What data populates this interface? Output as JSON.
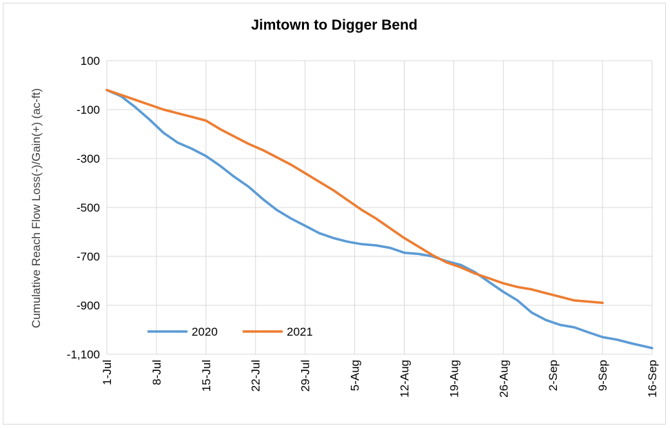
{
  "chart_data": {
    "type": "line",
    "title": "Jimtown to Digger Bend",
    "ylabel": "Cumulative Reach Flow Loss(-)/Gain(+) (ac-ft)",
    "xlabel": "",
    "x_ticks": [
      "1-Jul",
      "8-Jul",
      "15-Jul",
      "22-Jul",
      "29-Jul",
      "5-Aug",
      "12-Aug",
      "19-Aug",
      "26-Aug",
      "2-Sep",
      "9-Sep",
      "16-Sep"
    ],
    "y_ticks": [
      "100",
      "-100",
      "-300",
      "-500",
      "-700",
      "-900",
      "-1,100"
    ],
    "ylim": [
      -1100,
      100
    ],
    "xlim_days": [
      0,
      77
    ],
    "grid": true,
    "legend_position": "bottom-left",
    "series": [
      {
        "name": "2020",
        "color": "#5b9bd5",
        "points": [
          [
            0,
            -20
          ],
          [
            2,
            -45
          ],
          [
            4,
            -90
          ],
          [
            6,
            -140
          ],
          [
            8,
            -195
          ],
          [
            10,
            -235
          ],
          [
            12,
            -260
          ],
          [
            14,
            -290
          ],
          [
            16,
            -330
          ],
          [
            18,
            -375
          ],
          [
            20,
            -415
          ],
          [
            22,
            -465
          ],
          [
            24,
            -510
          ],
          [
            26,
            -545
          ],
          [
            28,
            -575
          ],
          [
            30,
            -605
          ],
          [
            32,
            -625
          ],
          [
            34,
            -640
          ],
          [
            36,
            -650
          ],
          [
            38,
            -655
          ],
          [
            40,
            -665
          ],
          [
            42,
            -685
          ],
          [
            44,
            -690
          ],
          [
            46,
            -700
          ],
          [
            48,
            -720
          ],
          [
            50,
            -735
          ],
          [
            52,
            -765
          ],
          [
            54,
            -805
          ],
          [
            56,
            -845
          ],
          [
            58,
            -880
          ],
          [
            60,
            -930
          ],
          [
            62,
            -960
          ],
          [
            64,
            -980
          ],
          [
            66,
            -990
          ],
          [
            68,
            -1010
          ],
          [
            70,
            -1030
          ],
          [
            72,
            -1040
          ],
          [
            74,
            -1055
          ],
          [
            77,
            -1075
          ]
        ]
      },
      {
        "name": "2021",
        "color": "#ed7d31",
        "points": [
          [
            0,
            -20
          ],
          [
            2,
            -40
          ],
          [
            4,
            -60
          ],
          [
            6,
            -80
          ],
          [
            8,
            -100
          ],
          [
            10,
            -115
          ],
          [
            12,
            -130
          ],
          [
            14,
            -145
          ],
          [
            16,
            -180
          ],
          [
            18,
            -210
          ],
          [
            20,
            -240
          ],
          [
            22,
            -265
          ],
          [
            24,
            -295
          ],
          [
            26,
            -325
          ],
          [
            28,
            -360
          ],
          [
            30,
            -395
          ],
          [
            32,
            -430
          ],
          [
            34,
            -470
          ],
          [
            36,
            -510
          ],
          [
            38,
            -545
          ],
          [
            40,
            -585
          ],
          [
            42,
            -625
          ],
          [
            44,
            -660
          ],
          [
            46,
            -695
          ],
          [
            48,
            -725
          ],
          [
            50,
            -745
          ],
          [
            52,
            -770
          ],
          [
            54,
            -790
          ],
          [
            56,
            -810
          ],
          [
            58,
            -825
          ],
          [
            60,
            -835
          ],
          [
            62,
            -850
          ],
          [
            64,
            -865
          ],
          [
            66,
            -880
          ],
          [
            70,
            -890
          ]
        ]
      }
    ]
  }
}
